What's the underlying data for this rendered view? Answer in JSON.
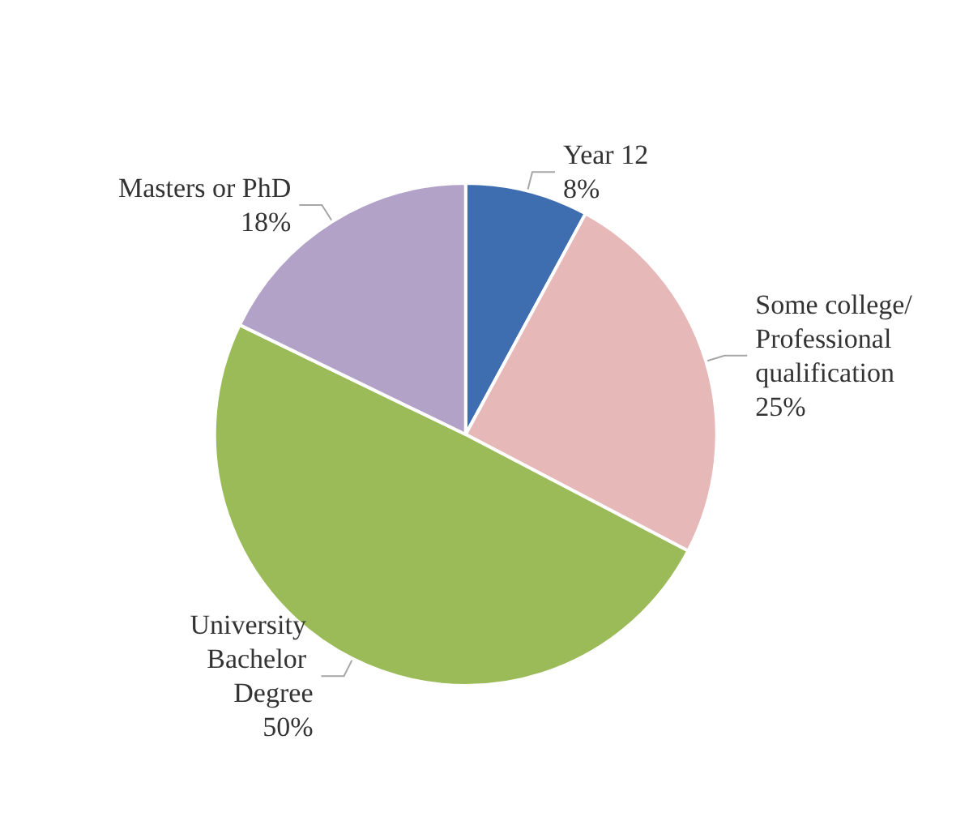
{
  "chart_data": {
    "type": "pie",
    "categories": [
      "Year 12",
      "Some college/ Professional qualification",
      "University Bachelor Degree",
      "Masters or PhD"
    ],
    "values": [
      8,
      25,
      50,
      18
    ],
    "value_labels": [
      "8%",
      "25%",
      "50%",
      "18%"
    ],
    "colors": [
      "#3f6eb0",
      "#e6b9b8",
      "#9bbb59",
      "#b3a2c7"
    ],
    "legend": false
  }
}
